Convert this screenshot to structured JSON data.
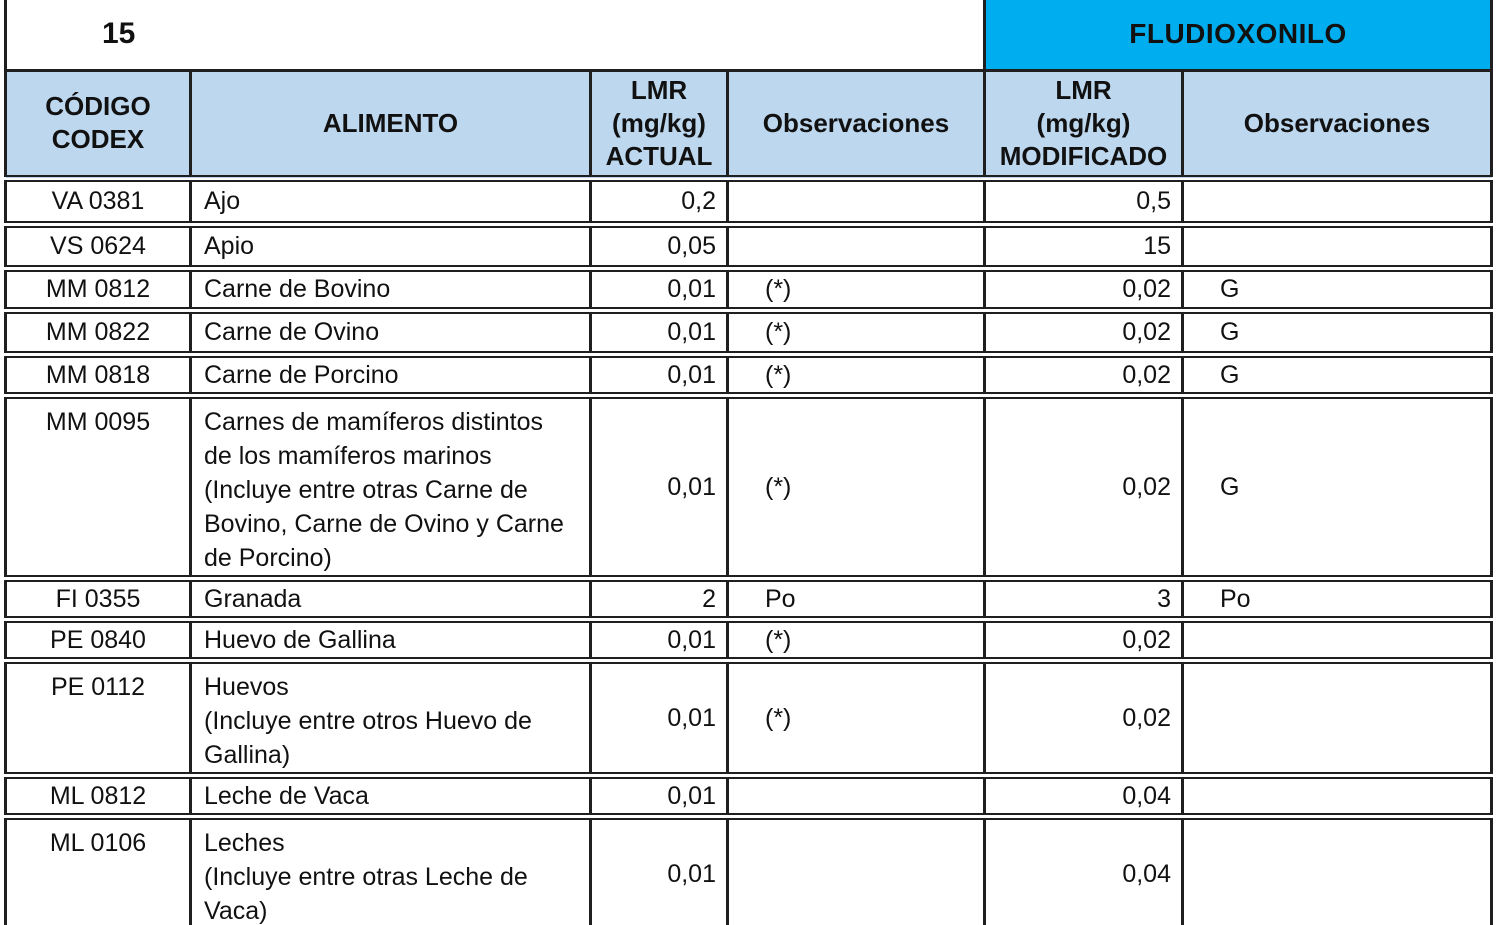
{
  "page": {
    "number": "15"
  },
  "table": {
    "substance": "FLUDIOXONILO",
    "columns": [
      "CÓDIGO\nCODEX",
      "ALIMENTO",
      "LMR\n(mg/kg)\nACTUAL",
      "Observaciones",
      "LMR\n(mg/kg)\nMODIFICADO",
      "Observaciones"
    ],
    "rows": [
      {
        "code": "VA 0381",
        "food": "Ajo",
        "lmr_actual": "0,2",
        "obs_actual": "",
        "lmr_modified": "0,5",
        "obs_modified": ""
      },
      {
        "code": "VS 0624",
        "food": "Apio",
        "lmr_actual": "0,05",
        "obs_actual": "",
        "lmr_modified": "15",
        "obs_modified": ""
      },
      {
        "code": "MM 0812",
        "food": "Carne de Bovino",
        "lmr_actual": "0,01",
        "obs_actual": "(*)",
        "lmr_modified": "0,02",
        "obs_modified": "G"
      },
      {
        "code": "MM 0822",
        "food": "Carne de Ovino",
        "lmr_actual": "0,01",
        "obs_actual": "(*)",
        "lmr_modified": "0,02",
        "obs_modified": "G"
      },
      {
        "code": "MM 0818",
        "food": "Carne de Porcino",
        "lmr_actual": "0,01",
        "obs_actual": "(*)",
        "lmr_modified": "0,02",
        "obs_modified": "G"
      },
      {
        "code": "MM 0095",
        "food": "Carnes de mamíferos distintos\nde los mamíferos marinos\n(Incluye entre otras Carne de\nBovino, Carne de Ovino y Carne\nde Porcino)",
        "lmr_actual": "0,01",
        "obs_actual": "(*)",
        "lmr_modified": "0,02",
        "obs_modified": "G"
      },
      {
        "code": "FI 0355",
        "food": "Granada",
        "lmr_actual": "2",
        "obs_actual": "Po",
        "lmr_modified": "3",
        "obs_modified": "Po"
      },
      {
        "code": "PE 0840",
        "food": "Huevo de Gallina",
        "lmr_actual": "0,01",
        "obs_actual": "(*)",
        "lmr_modified": "0,02",
        "obs_modified": ""
      },
      {
        "code": "PE 0112",
        "food": "Huevos\n(Incluye entre otros Huevo de\nGallina)",
        "lmr_actual": "0,01",
        "obs_actual": "(*)",
        "lmr_modified": "0,02",
        "obs_modified": ""
      },
      {
        "code": "ML 0812",
        "food": "Leche de Vaca",
        "lmr_actual": "0,01",
        "obs_actual": "",
        "lmr_modified": "0,04",
        "obs_modified": ""
      },
      {
        "code": "ML 0106",
        "food": "Leches\n(Incluye entre otras Leche de\nVaca)",
        "lmr_actual": "0,01",
        "obs_actual": "",
        "lmr_modified": "0,04",
        "obs_modified": ""
      }
    ]
  },
  "colors": {
    "substance_header_bg": "#00AEEF",
    "column_header_bg": "#BDD7EE",
    "grid_border": "#1F1F1F",
    "row_bg": "#FFFFFF"
  }
}
